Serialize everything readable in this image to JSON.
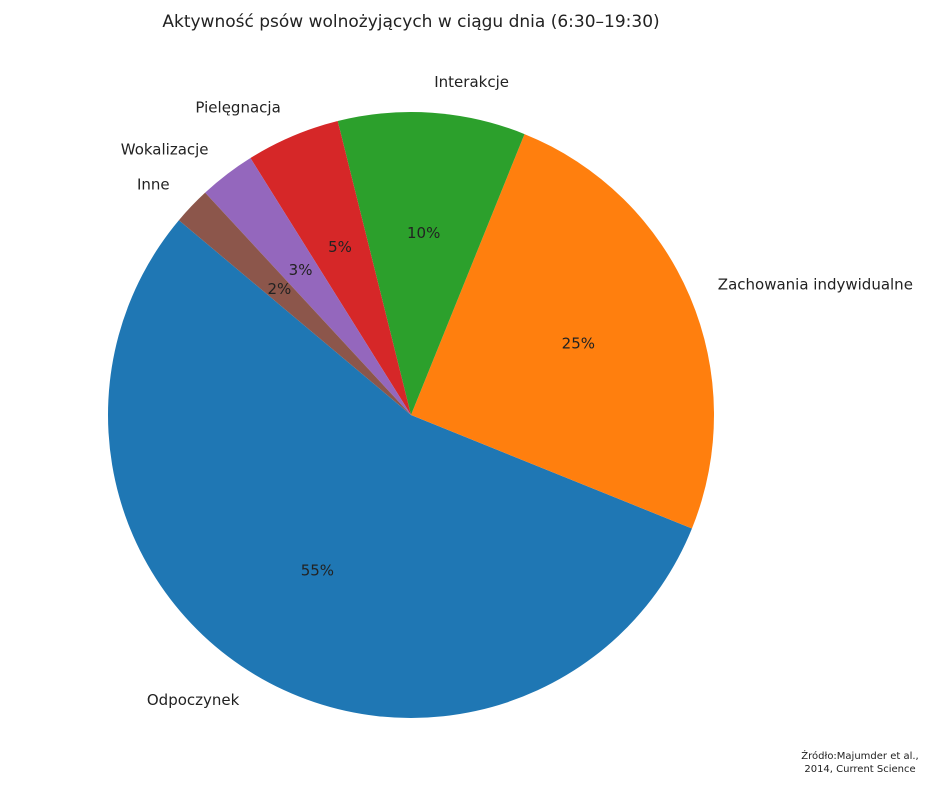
{
  "chart_data": {
    "type": "pie",
    "title": "Aktywność psów wolnożyjących w ciągu dnia (6:30–19:30)",
    "categories": [
      "Odpoczynek",
      "Zachowania indywidualne",
      "Interakcje",
      "Pielęgnacja",
      "Wokalizacje",
      "Inne"
    ],
    "values": [
      55,
      25,
      10,
      5,
      3,
      2
    ],
    "value_labels": [
      "55%",
      "25%",
      "10%",
      "5%",
      "3%",
      "2%"
    ],
    "colors": [
      "#1f77b4",
      "#ff7f0e",
      "#2ca02c",
      "#d62728",
      "#9467bd",
      "#8c564b"
    ],
    "source_lines": [
      "Źródło:Majumder et al.,",
      "2014, Current Science"
    ]
  }
}
